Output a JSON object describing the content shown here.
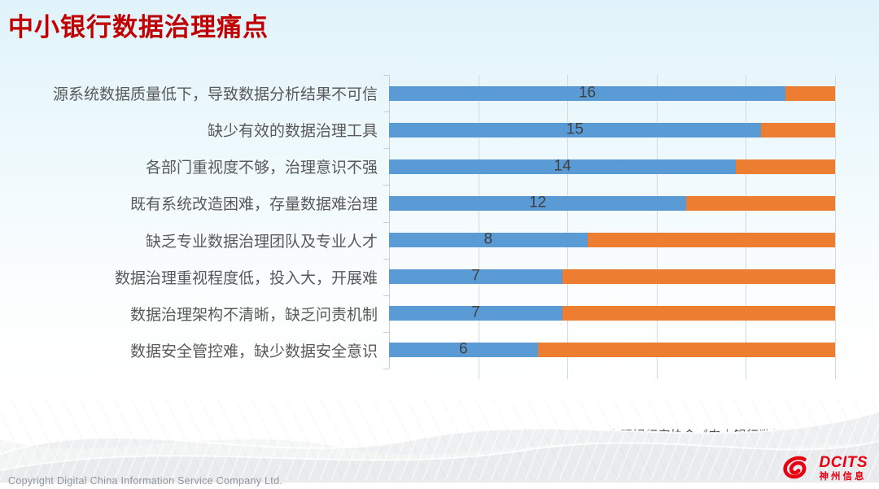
{
  "slide": {
    "title": "中小银行数据治理痛点",
    "source": "——中国银行家协会《中小银行数据治理研究报告》",
    "footer": {
      "copyright": "Copyright  Digital China Information Service Company Ltd."
    },
    "logo": {
      "name": "DCITS",
      "subtext": "神州信息",
      "color": "#e60012",
      "icon": "swirl-icon"
    }
  },
  "chart_data": {
    "type": "bar",
    "variant": "horizontal-stacked",
    "title": "中小银行数据治理痛点",
    "categories": [
      "源系统数据质量低下，导致数据分析结果不可信",
      "缺少有效的数据治理工具",
      "各部门重视度不够，治理意识不强",
      "既有系统改造困难，存量数据难治理",
      "缺乏专业数据治理团队及专业人才",
      "数据治理重视程度低，投入大，开展难",
      "数据治理架构不清晰，缺乏问责机制",
      "数据安全管控难，缺少数据安全意识"
    ],
    "series": [
      {
        "name": "blue-segment",
        "color": "#5B9BD5",
        "values": [
          16,
          15,
          14,
          12,
          8,
          7,
          7,
          6
        ]
      },
      {
        "name": "orange-segment",
        "color": "#ED7D31",
        "values": [
          2,
          3,
          4,
          6,
          10,
          11,
          11,
          12
        ]
      }
    ],
    "bar_total": 18,
    "xlim": [
      0,
      18
    ],
    "gridline_divisions": 5,
    "data_labels": [
      16,
      15,
      14,
      12,
      8,
      7,
      7,
      6
    ],
    "data_label_color": "#404040",
    "legend": "none",
    "grid": "vertical-on",
    "axis_label_color": "#595959",
    "gridline_color": "#D6D9DA"
  }
}
